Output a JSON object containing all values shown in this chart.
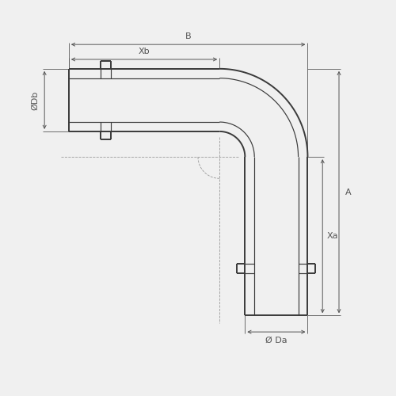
{
  "bg_color": "#f0f0f0",
  "line_color": "#3a3a3a",
  "dim_color": "#555555",
  "light_line_color": "#999999",
  "figsize": [
    5.0,
    5.0
  ],
  "dpi": 100,
  "labels": {
    "B": "B",
    "Xb": "Xb",
    "Db": "ØDb",
    "A": "A",
    "Xa": "Xa",
    "Da": "Ø Da"
  }
}
